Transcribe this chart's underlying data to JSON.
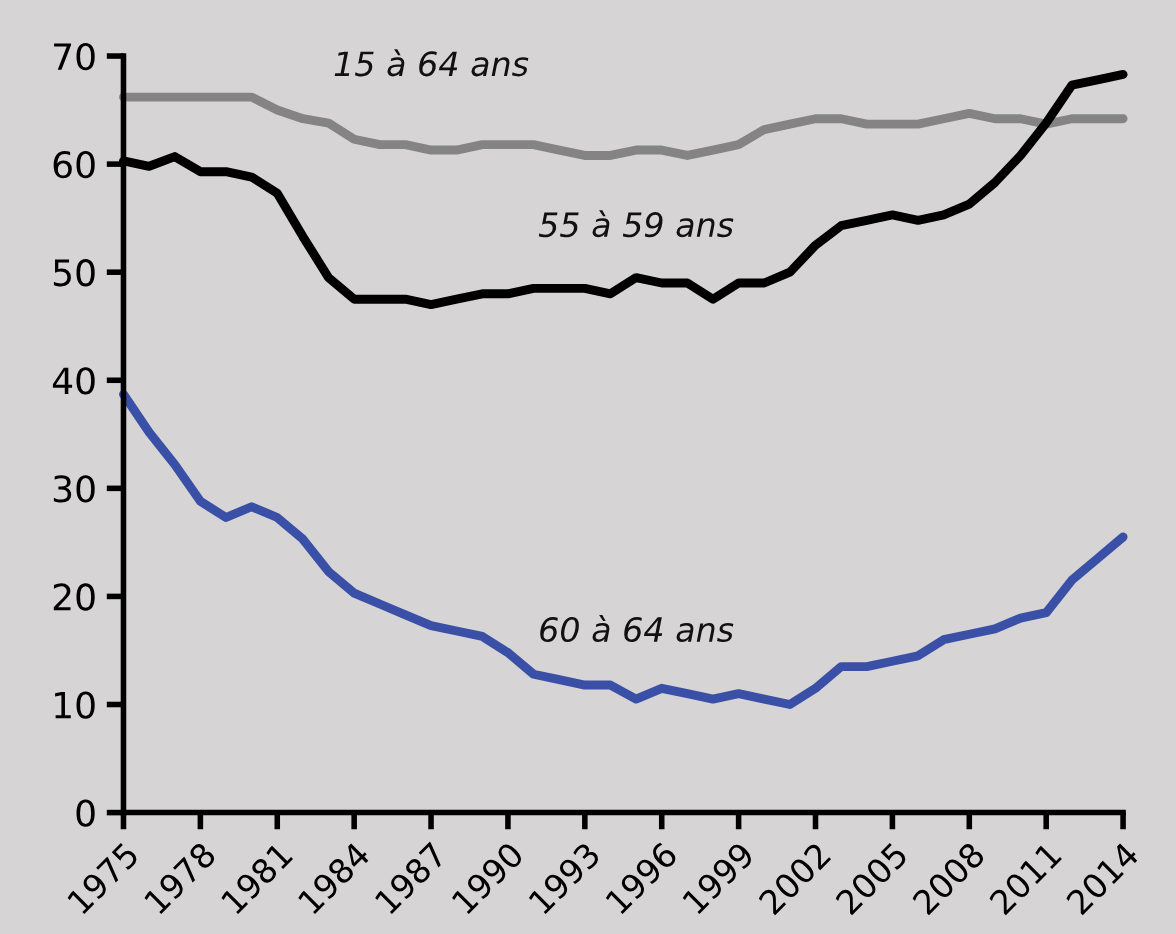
{
  "chart_data": {
    "type": "line",
    "x": [
      1975,
      1976,
      1977,
      1978,
      1979,
      1980,
      1981,
      1982,
      1983,
      1984,
      1985,
      1986,
      1987,
      1988,
      1989,
      1990,
      1991,
      1992,
      1993,
      1994,
      1995,
      1996,
      1997,
      1998,
      1999,
      2000,
      2001,
      2002,
      2003,
      2004,
      2005,
      2006,
      2007,
      2008,
      2009,
      2010,
      2011,
      2012,
      2013,
      2014
    ],
    "series": [
      {
        "name": "15 à 64 ans",
        "color": "#848484",
        "values": [
          66.2,
          66.2,
          66.2,
          66.2,
          66.2,
          66.2,
          65.0,
          64.2,
          63.8,
          62.3,
          61.8,
          61.8,
          61.3,
          61.3,
          61.8,
          61.8,
          61.8,
          61.3,
          60.8,
          60.8,
          61.3,
          61.3,
          60.8,
          61.3,
          61.8,
          63.2,
          63.7,
          64.2,
          64.2,
          63.7,
          63.7,
          63.7,
          64.2,
          64.7,
          64.2,
          64.2,
          63.7,
          64.2,
          64.2,
          64.2
        ]
      },
      {
        "name": "55 à 59 ans",
        "color": "#000000",
        "values": [
          60.3,
          59.8,
          60.7,
          59.3,
          59.3,
          58.8,
          57.3,
          53.3,
          49.5,
          47.5,
          47.5,
          47.5,
          47.0,
          47.5,
          48.0,
          48.0,
          48.5,
          48.5,
          48.5,
          48.0,
          49.5,
          49.0,
          49.0,
          47.5,
          49.0,
          49.0,
          50.0,
          52.5,
          54.3,
          54.8,
          55.3,
          54.8,
          55.3,
          56.3,
          58.3,
          60.8,
          63.8,
          67.3,
          67.8,
          68.3
        ]
      },
      {
        "name": "60 à 64 ans",
        "color": "#3a4fa6",
        "values": [
          38.7,
          35.2,
          32.2,
          28.8,
          27.3,
          28.3,
          27.3,
          25.3,
          22.3,
          20.3,
          19.3,
          18.3,
          17.3,
          16.8,
          16.3,
          14.8,
          12.8,
          12.3,
          11.8,
          11.8,
          10.5,
          11.5,
          11.0,
          10.5,
          11.0,
          10.5,
          10.0,
          11.5,
          13.5,
          13.5,
          14.0,
          14.5,
          16.0,
          16.5,
          17.0,
          18.0,
          18.5,
          21.5,
          23.5,
          25.5
        ]
      }
    ],
    "xlim": [
      1975,
      2014
    ],
    "xticks": [
      1975,
      1978,
      1981,
      1984,
      1987,
      1990,
      1993,
      1996,
      1999,
      2002,
      2005,
      2008,
      2011,
      2014
    ],
    "ylim": [
      0,
      70
    ],
    "yticks": [
      0,
      10,
      20,
      30,
      40,
      50,
      60,
      70
    ],
    "grid": false,
    "marker": "none",
    "line_style": "solid"
  }
}
